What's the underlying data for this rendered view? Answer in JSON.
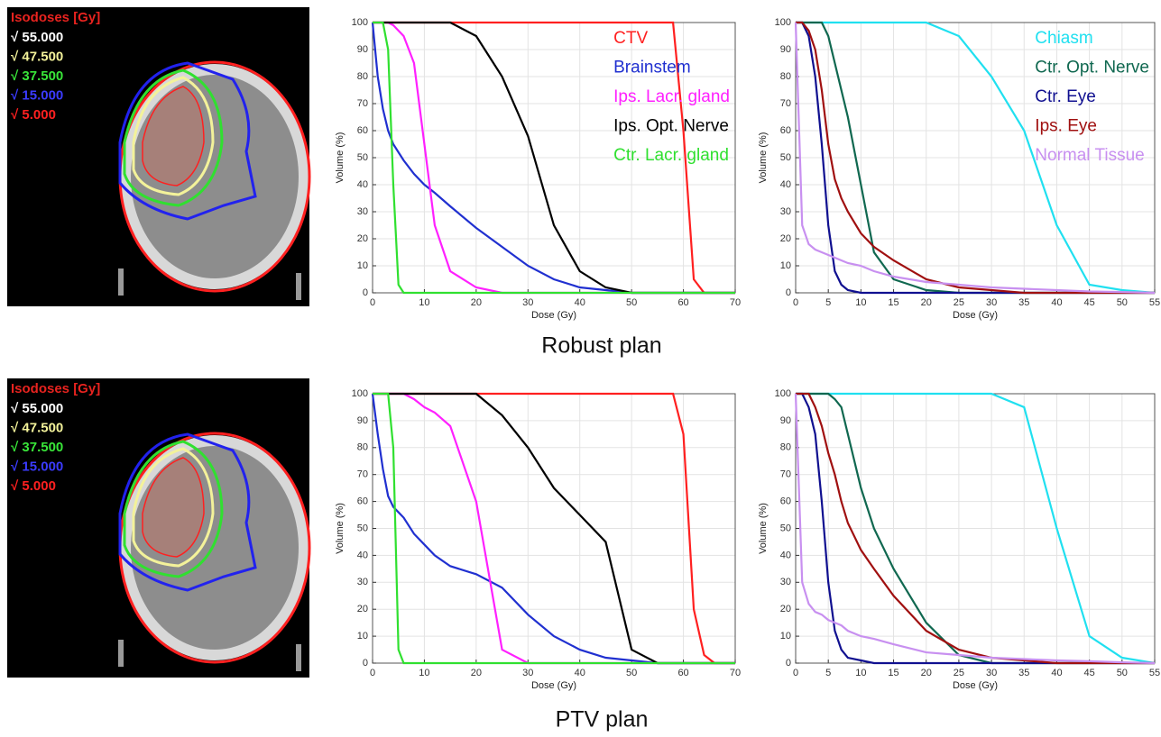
{
  "panels": [
    {
      "isodose_title": "Isodoses [Gy]",
      "isodose_title_color": "#e8231f",
      "isodose_levels": [
        {
          "label": "√ 55.000",
          "color": "#ffffff"
        },
        {
          "label": "√ 47.500",
          "color": "#f3f29a"
        },
        {
          "label": "√ 37.500",
          "color": "#39e639"
        },
        {
          "label": "√ 15.000",
          "color": "#3b3bff"
        },
        {
          "label": "√ 5.000",
          "color": "#ff2020"
        }
      ],
      "caption": "Robust plan"
    },
    {
      "isodose_title": "Isodoses [Gy]",
      "isodose_title_color": "#e8231f",
      "isodose_levels": [
        {
          "label": "√ 55.000",
          "color": "#ffffff"
        },
        {
          "label": "√ 47.500",
          "color": "#f3f29a"
        },
        {
          "label": "√ 37.500",
          "color": "#39e639"
        },
        {
          "label": "√ 15.000",
          "color": "#3b3bff"
        },
        {
          "label": "√ 5.000",
          "color": "#ff2020"
        }
      ],
      "caption": "PTV plan"
    }
  ],
  "chart_data": [
    {
      "type": "line",
      "xlabel": "Dose (Gy)",
      "ylabel": "Volume (%)",
      "grid": true,
      "legend": "upper right",
      "xlim": [
        0,
        70
      ],
      "ylim": [
        0,
        100
      ],
      "xticks": [
        0,
        10,
        20,
        30,
        40,
        50,
        60,
        70
      ],
      "yticks": [
        0,
        10,
        20,
        30,
        40,
        50,
        60,
        70,
        80,
        90,
        100
      ],
      "x": [
        0,
        1,
        2,
        3,
        4,
        5,
        6,
        8,
        10,
        12,
        15,
        20,
        25,
        30,
        35,
        40,
        45,
        50,
        55,
        58,
        60,
        62,
        64,
        66,
        70
      ],
      "series": [
        {
          "name": "CTV",
          "color": "#ff2020",
          "values": [
            100,
            100,
            100,
            100,
            100,
            100,
            100,
            100,
            100,
            100,
            100,
            100,
            100,
            100,
            100,
            100,
            100,
            100,
            100,
            100,
            60,
            5,
            0,
            0,
            0
          ]
        },
        {
          "name": "Brainstem",
          "color": "#2030d0",
          "values": [
            100,
            80,
            68,
            60,
            55,
            52,
            49,
            44,
            40,
            37,
            32,
            24,
            17,
            10,
            5,
            2,
            1,
            0,
            0,
            0,
            0,
            0,
            0,
            0,
            0
          ]
        },
        {
          "name": "Ips. Lacr. gland",
          "color": "#ff20ff",
          "values": [
            100,
            100,
            100,
            100,
            99,
            97,
            95,
            85,
            55,
            25,
            8,
            2,
            0,
            0,
            0,
            0,
            0,
            0,
            0,
            0,
            0,
            0,
            0,
            0,
            0
          ]
        },
        {
          "name": "Ips. Opt. Nerve",
          "color": "#000000",
          "values": [
            100,
            100,
            100,
            100,
            100,
            100,
            100,
            100,
            100,
            100,
            100,
            95,
            80,
            58,
            25,
            8,
            2,
            0,
            0,
            0,
            0,
            0,
            0,
            0,
            0
          ]
        },
        {
          "name": "Ctr. Lacr. gland",
          "color": "#30e030",
          "values": [
            100,
            100,
            100,
            90,
            40,
            3,
            0,
            0,
            0,
            0,
            0,
            0,
            0,
            0,
            0,
            0,
            0,
            0,
            0,
            0,
            0,
            0,
            0,
            0,
            0
          ]
        }
      ]
    },
    {
      "type": "line",
      "xlabel": "Dose (Gy)",
      "ylabel": "Volume (%)",
      "grid": true,
      "legend": "upper right",
      "xlim": [
        0,
        55
      ],
      "ylim": [
        0,
        100
      ],
      "xticks": [
        0,
        5,
        10,
        15,
        20,
        25,
        30,
        35,
        40,
        45,
        50,
        55
      ],
      "yticks": [
        0,
        10,
        20,
        30,
        40,
        50,
        60,
        70,
        80,
        90,
        100
      ],
      "x": [
        0,
        1,
        2,
        3,
        4,
        5,
        6,
        7,
        8,
        10,
        12,
        15,
        20,
        25,
        30,
        35,
        40,
        45,
        50,
        55
      ],
      "series": [
        {
          "name": "Chiasm",
          "color": "#20e0f0",
          "values": [
            100,
            100,
            100,
            100,
            100,
            100,
            100,
            100,
            100,
            100,
            100,
            100,
            100,
            95,
            80,
            60,
            25,
            3,
            1,
            0
          ]
        },
        {
          "name": "Ctr. Opt. Nerve",
          "color": "#106850",
          "values": [
            100,
            100,
            100,
            100,
            100,
            95,
            85,
            75,
            65,
            40,
            15,
            5,
            1,
            0,
            0,
            0,
            0,
            0,
            0,
            0
          ]
        },
        {
          "name": "Ctr. Eye",
          "color": "#101090",
          "values": [
            100,
            100,
            95,
            80,
            55,
            25,
            8,
            3,
            1,
            0,
            0,
            0,
            0,
            0,
            0,
            0,
            0,
            0,
            0,
            0
          ]
        },
        {
          "name": "Ips. Eye",
          "color": "#a01010",
          "values": [
            100,
            100,
            97,
            90,
            75,
            55,
            42,
            35,
            30,
            22,
            17,
            12,
            5,
            2,
            1,
            0,
            0,
            0,
            0,
            0
          ]
        },
        {
          "name": "Normal Tissue",
          "color": "#c890f0",
          "values": [
            100,
            25,
            18,
            16,
            15,
            14,
            13,
            12,
            11,
            10,
            8,
            6,
            4,
            3,
            2,
            1.5,
            1,
            0.5,
            0.3,
            0
          ]
        }
      ]
    },
    {
      "type": "line",
      "xlabel": "Dose (Gy)",
      "ylabel": "Volume (%)",
      "grid": true,
      "xlim": [
        0,
        70
      ],
      "ylim": [
        0,
        100
      ],
      "xticks": [
        0,
        10,
        20,
        30,
        40,
        50,
        60,
        70
      ],
      "yticks": [
        0,
        10,
        20,
        30,
        40,
        50,
        60,
        70,
        80,
        90,
        100
      ],
      "x": [
        0,
        1,
        2,
        3,
        4,
        5,
        6,
        8,
        10,
        12,
        15,
        20,
        25,
        30,
        35,
        40,
        45,
        50,
        55,
        58,
        60,
        62,
        64,
        66,
        70
      ],
      "series": [
        {
          "color": "#ff2020",
          "values": [
            100,
            100,
            100,
            100,
            100,
            100,
            100,
            100,
            100,
            100,
            100,
            100,
            100,
            100,
            100,
            100,
            100,
            100,
            100,
            100,
            85,
            20,
            3,
            0,
            0
          ]
        },
        {
          "color": "#2030d0",
          "values": [
            100,
            85,
            72,
            62,
            58,
            56,
            54,
            48,
            44,
            40,
            36,
            33,
            28,
            18,
            10,
            5,
            2,
            1,
            0,
            0,
            0,
            0,
            0,
            0,
            0
          ]
        },
        {
          "color": "#ff20ff",
          "values": [
            100,
            100,
            100,
            100,
            100,
            100,
            100,
            98,
            95,
            93,
            88,
            60,
            5,
            0,
            0,
            0,
            0,
            0,
            0,
            0,
            0,
            0,
            0,
            0,
            0
          ]
        },
        {
          "color": "#000000",
          "values": [
            100,
            100,
            100,
            100,
            100,
            100,
            100,
            100,
            100,
            100,
            100,
            100,
            92,
            80,
            65,
            55,
            45,
            5,
            0,
            0,
            0,
            0,
            0,
            0,
            0
          ]
        },
        {
          "color": "#30e030",
          "values": [
            100,
            100,
            100,
            100,
            80,
            5,
            0,
            0,
            0,
            0,
            0,
            0,
            0,
            0,
            0,
            0,
            0,
            0,
            0,
            0,
            0,
            0,
            0,
            0,
            0
          ]
        }
      ]
    },
    {
      "type": "line",
      "xlabel": "Dose (Gy)",
      "ylabel": "Volume (%)",
      "grid": true,
      "xlim": [
        0,
        55
      ],
      "ylim": [
        0,
        100
      ],
      "xticks": [
        0,
        5,
        10,
        15,
        20,
        25,
        30,
        35,
        40,
        45,
        50,
        55
      ],
      "yticks": [
        0,
        10,
        20,
        30,
        40,
        50,
        60,
        70,
        80,
        90,
        100
      ],
      "x": [
        0,
        1,
        2,
        3,
        4,
        5,
        6,
        7,
        8,
        10,
        12,
        15,
        20,
        25,
        30,
        35,
        40,
        45,
        50,
        55
      ],
      "series": [
        {
          "color": "#20e0f0",
          "values": [
            100,
            100,
            100,
            100,
            100,
            100,
            100,
            100,
            100,
            100,
            100,
            100,
            100,
            100,
            100,
            95,
            50,
            10,
            2,
            0
          ]
        },
        {
          "color": "#106850",
          "values": [
            100,
            100,
            100,
            100,
            100,
            100,
            98,
            95,
            85,
            65,
            50,
            35,
            15,
            3,
            0,
            0,
            0,
            0,
            0,
            0
          ]
        },
        {
          "color": "#101090",
          "values": [
            100,
            100,
            95,
            85,
            60,
            30,
            12,
            5,
            2,
            1,
            0,
            0,
            0,
            0,
            0,
            0,
            0,
            0,
            0,
            0
          ]
        },
        {
          "color": "#a01010",
          "values": [
            100,
            100,
            100,
            95,
            88,
            78,
            70,
            60,
            52,
            42,
            35,
            25,
            12,
            5,
            2,
            1,
            0,
            0,
            0,
            0
          ]
        },
        {
          "color": "#c890f0",
          "values": [
            100,
            30,
            22,
            19,
            18,
            16,
            15,
            14,
            12,
            10,
            9,
            7,
            4,
            3,
            2,
            1.5,
            1,
            0.7,
            0.3,
            0
          ]
        }
      ]
    }
  ]
}
